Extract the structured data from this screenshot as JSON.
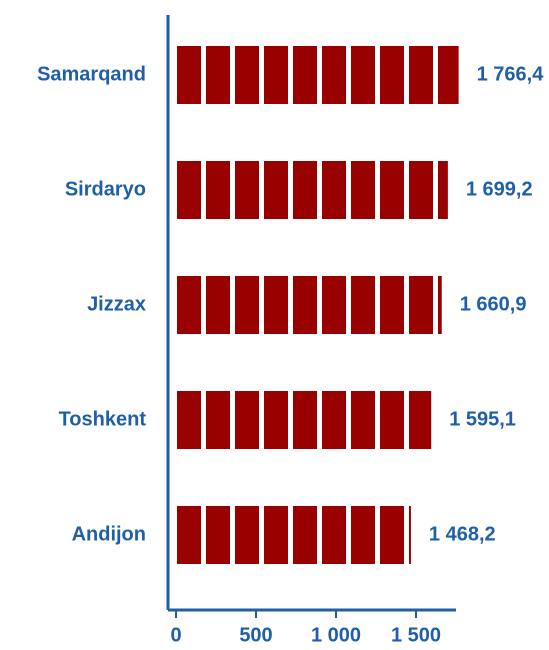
{
  "chart_data": {
    "type": "bar",
    "orientation": "horizontal",
    "categories": [
      "Samarqand",
      "Sirdaryo",
      "Jizzax",
      "Toshkent",
      "Andijon"
    ],
    "values": [
      1766.4,
      1699.2,
      1660.9,
      1595.1,
      1468.2
    ],
    "value_labels": [
      "1 766,4",
      "1 699,2",
      "1 660,9",
      "1 595,1",
      "1 468,2"
    ],
    "color": "#990000",
    "xlim": [
      0,
      1800
    ],
    "xticks": [
      0,
      500,
      {
        "value": 1000,
        "label": "1 000"
      },
      {
        "value": 1500,
        "label": "1 500"
      }
    ],
    "grid": false
  }
}
